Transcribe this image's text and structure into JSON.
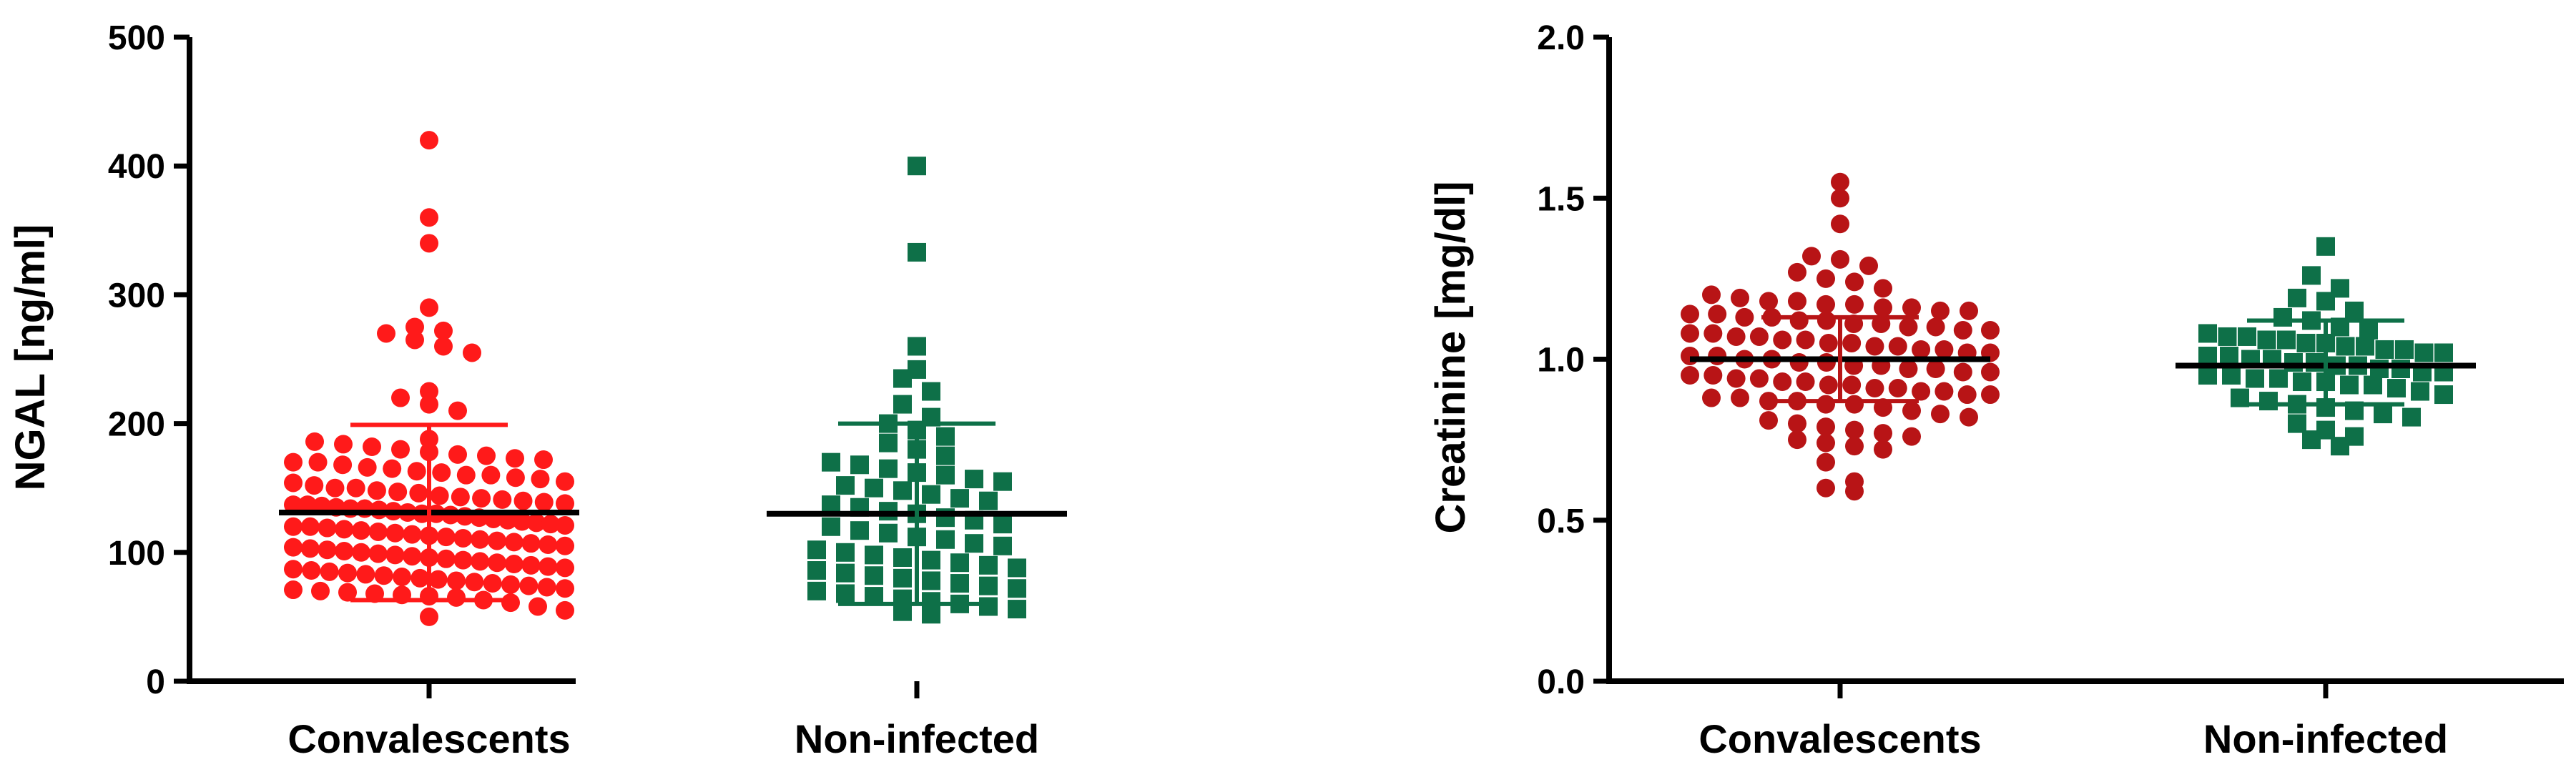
{
  "chart_data": [
    {
      "type": "scatter",
      "ylabel": "NGAL [ng/ml]",
      "ylim": [
        0,
        500
      ],
      "yticks": [
        "0",
        "100",
        "200",
        "300",
        "400",
        "500"
      ],
      "ytick_values": [
        0,
        100,
        200,
        300,
        400,
        500
      ],
      "categories": [
        "Convalescents",
        "Non-infected"
      ],
      "series": [
        {
          "name": "Convalescents",
          "marker": "circle",
          "color": "#FF1A1A",
          "mean": 131,
          "sd_upper": 199,
          "sd_lower": 63,
          "values": [
            420,
            360,
            340,
            290,
            275,
            272,
            270,
            265,
            260,
            255,
            225,
            220,
            215,
            210,
            188,
            186,
            184,
            182,
            180,
            178,
            176,
            175,
            173,
            172,
            170,
            170,
            168,
            166,
            165,
            163,
            162,
            160,
            160,
            158,
            157,
            155,
            154,
            152,
            150,
            150,
            148,
            147,
            146,
            144,
            143,
            142,
            141,
            140,
            139,
            138,
            137,
            137,
            136,
            135,
            134,
            134,
            133,
            132,
            131,
            130,
            130,
            129,
            128,
            127,
            126,
            125,
            124,
            123,
            122,
            121,
            120,
            120,
            119,
            118,
            117,
            116,
            115,
            114,
            113,
            112,
            111,
            110,
            109,
            108,
            107,
            106,
            105,
            104,
            103,
            102,
            101,
            100,
            99,
            98,
            97,
            96,
            95,
            94,
            93,
            92,
            91,
            90,
            89,
            88,
            87,
            86,
            85,
            84,
            83,
            82,
            81,
            80,
            79,
            78,
            77,
            76,
            75,
            74,
            73,
            72,
            71,
            70,
            69,
            68,
            67,
            66,
            65,
            63,
            61,
            58,
            55,
            50
          ]
        },
        {
          "name": "Non-infected",
          "marker": "square",
          "color": "#0E7048",
          "mean": 130,
          "sd_upper": 200,
          "sd_lower": 60,
          "values": [
            400,
            333,
            260,
            242,
            235,
            225,
            215,
            205,
            200,
            195,
            190,
            185,
            180,
            175,
            170,
            168,
            165,
            162,
            160,
            157,
            155,
            152,
            150,
            148,
            145,
            142,
            140,
            137,
            135,
            132,
            130,
            127,
            125,
            122,
            120,
            117,
            115,
            112,
            110,
            107,
            105,
            102,
            100,
            98,
            96,
            94,
            92,
            90,
            88,
            86,
            84,
            82,
            80,
            78,
            76,
            74,
            72,
            70,
            68,
            66,
            64,
            62,
            60,
            58,
            56,
            54,
            52
          ]
        }
      ]
    },
    {
      "type": "scatter",
      "ylabel": "Creatinine [mg/dl]",
      "ylim": [
        0,
        2.0
      ],
      "yticks": [
        "0.0",
        "0.5",
        "1.0",
        "1.5",
        "2.0"
      ],
      "ytick_values": [
        0,
        0.5,
        1.0,
        1.5,
        2.0
      ],
      "categories": [
        "Convalescents",
        "Non-infected"
      ],
      "series": [
        {
          "name": "Convalescents",
          "marker": "circle",
          "color": "#B81416",
          "mean": 1.0,
          "sd_upper": 1.13,
          "sd_lower": 0.87,
          "values": [
            1.55,
            1.5,
            1.42,
            1.32,
            1.31,
            1.29,
            1.27,
            1.25,
            1.24,
            1.22,
            1.2,
            1.19,
            1.18,
            1.18,
            1.17,
            1.17,
            1.16,
            1.16,
            1.15,
            1.15,
            1.14,
            1.14,
            1.13,
            1.13,
            1.12,
            1.12,
            1.11,
            1.11,
            1.1,
            1.1,
            1.09,
            1.09,
            1.08,
            1.08,
            1.07,
            1.07,
            1.06,
            1.06,
            1.05,
            1.05,
            1.04,
            1.04,
            1.03,
            1.03,
            1.02,
            1.02,
            1.01,
            1.01,
            1.0,
            1.0,
            0.99,
            0.99,
            0.98,
            0.98,
            0.97,
            0.97,
            0.96,
            0.96,
            0.95,
            0.95,
            0.94,
            0.94,
            0.93,
            0.93,
            0.92,
            0.92,
            0.91,
            0.91,
            0.9,
            0.9,
            0.89,
            0.89,
            0.88,
            0.88,
            0.87,
            0.87,
            0.86,
            0.86,
            0.85,
            0.84,
            0.83,
            0.82,
            0.81,
            0.8,
            0.79,
            0.78,
            0.77,
            0.76,
            0.75,
            0.74,
            0.73,
            0.72,
            0.68,
            0.62,
            0.6,
            0.59
          ]
        },
        {
          "name": "Non-infected",
          "marker": "square",
          "color": "#0E7048",
          "mean": 0.98,
          "sd_upper": 1.12,
          "sd_lower": 0.86,
          "values": [
            1.35,
            1.26,
            1.22,
            1.19,
            1.18,
            1.15,
            1.13,
            1.12,
            1.1,
            1.09,
            1.08,
            1.07,
            1.07,
            1.06,
            1.06,
            1.05,
            1.05,
            1.04,
            1.04,
            1.03,
            1.03,
            1.02,
            1.02,
            1.01,
            1.01,
            1.0,
            1.0,
            0.99,
            0.99,
            0.98,
            0.98,
            0.97,
            0.97,
            0.96,
            0.96,
            0.95,
            0.95,
            0.94,
            0.94,
            0.93,
            0.93,
            0.92,
            0.92,
            0.91,
            0.9,
            0.89,
            0.88,
            0.87,
            0.86,
            0.85,
            0.84,
            0.83,
            0.82,
            0.8,
            0.78,
            0.76,
            0.75,
            0.73
          ]
        }
      ]
    }
  ]
}
